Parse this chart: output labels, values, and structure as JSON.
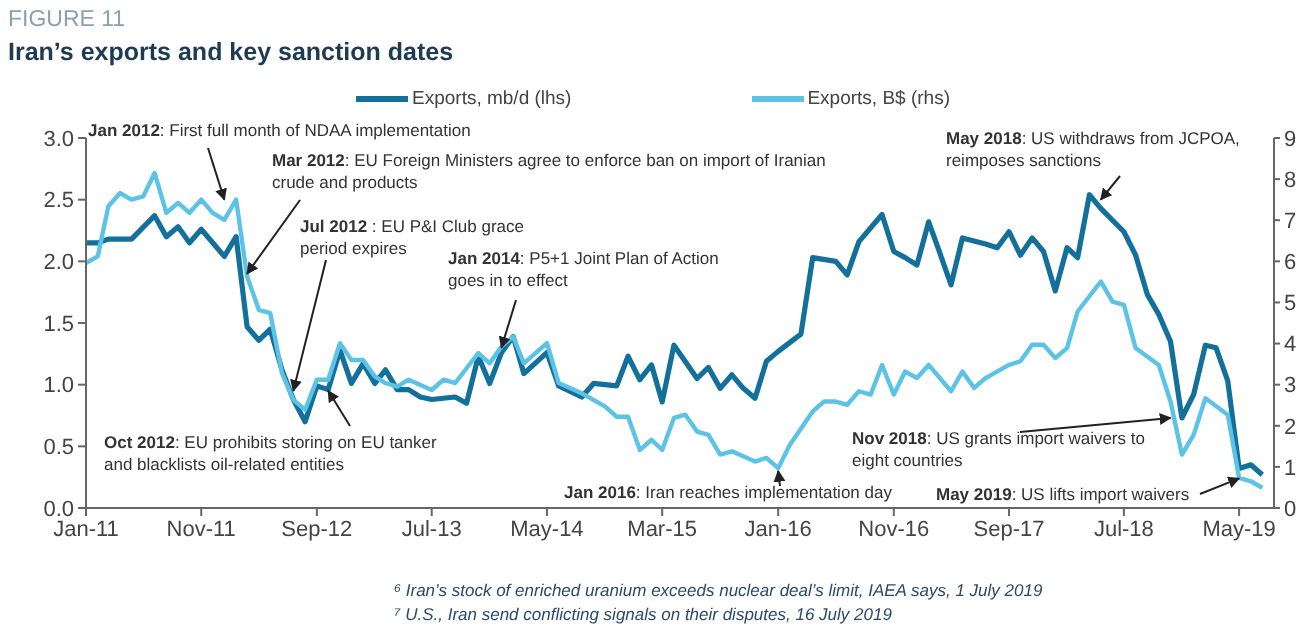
{
  "chart_data": {
    "type": "line",
    "title": "FIGURE 11",
    "subtitle": "Iran’s exports and key sanction dates",
    "xlim": [
      "2011-01",
      "2019-08"
    ],
    "xticks": [
      {
        "value": "2011-01",
        "label": "Jan-11"
      },
      {
        "value": "2011-11",
        "label": "Nov-11"
      },
      {
        "value": "2012-09",
        "label": "Sep-12"
      },
      {
        "value": "2013-07",
        "label": "Jul-13"
      },
      {
        "value": "2014-05",
        "label": "May-14"
      },
      {
        "value": "2015-03",
        "label": "Mar-15"
      },
      {
        "value": "2016-01",
        "label": "Jan-16"
      },
      {
        "value": "2016-11",
        "label": "Nov-16"
      },
      {
        "value": "2017-09",
        "label": "Sep-17"
      },
      {
        "value": "2018-07",
        "label": "Jul-18"
      },
      {
        "value": "2019-05",
        "label": "May-19"
      }
    ],
    "ylim": [
      0,
      3
    ],
    "yticks": [
      {
        "value": 0,
        "label": "0.0"
      },
      {
        "value": 0.5,
        "label": "0.5"
      },
      {
        "value": 1,
        "label": "1.0"
      },
      {
        "value": 1.5,
        "label": "1.5"
      },
      {
        "value": 2,
        "label": "2.0"
      },
      {
        "value": 2.5,
        "label": "2.5"
      },
      {
        "value": 3,
        "label": "3.0"
      }
    ],
    "y2lim": [
      0,
      9
    ],
    "y2ticks": [
      0,
      1,
      2,
      3,
      4,
      5,
      6,
      7,
      8,
      9
    ],
    "legend": "top",
    "marker": "none",
    "line_style": "solid",
    "series": [
      {
        "name": "Exports, mb/d (lhs)",
        "color": "#13709a",
        "x": [
          "2011-01",
          "2011-02",
          "2011-03",
          "2011-05",
          "2011-07",
          "2011-08",
          "2011-09",
          "2011-10",
          "2011-11",
          "2012-01",
          "2012-02",
          "2012-03",
          "2012-04",
          "2012-05",
          "2012-06",
          "2012-07",
          "2012-08",
          "2012-09",
          "2012-10",
          "2012-11",
          "2012-12",
          "2013-01",
          "2013-02",
          "2013-03",
          "2013-04",
          "2013-05",
          "2013-06",
          "2013-07",
          "2013-09",
          "2013-10",
          "2013-11",
          "2013-12",
          "2014-01",
          "2014-02",
          "2014-03",
          "2014-05",
          "2014-06",
          "2014-08",
          "2014-09",
          "2014-11",
          "2014-12",
          "2015-01",
          "2015-02",
          "2015-03",
          "2015-04",
          "2015-06",
          "2015-07",
          "2015-08",
          "2015-09",
          "2015-10",
          "2015-11",
          "2015-12",
          "2016-01",
          "2016-03",
          "2016-04",
          "2016-06",
          "2016-07",
          "2016-08",
          "2016-10",
          "2016-11",
          "2016-12",
          "2017-01",
          "2017-02",
          "2017-03",
          "2017-04",
          "2017-05",
          "2017-07",
          "2017-08",
          "2017-09",
          "2017-10",
          "2017-11",
          "2017-12",
          "2018-01",
          "2018-02",
          "2018-03",
          "2018-04",
          "2018-05",
          "2018-07",
          "2018-08",
          "2018-09",
          "2018-10",
          "2018-11",
          "2018-12",
          "2019-01",
          "2019-02",
          "2019-03",
          "2019-04",
          "2019-05",
          "2019-06",
          "2019-07"
        ],
        "values": [
          2.15,
          2.15,
          2.18,
          2.18,
          2.37,
          2.2,
          2.28,
          2.15,
          2.26,
          2.04,
          2.2,
          1.47,
          1.36,
          1.45,
          1.12,
          0.88,
          0.7,
          0.99,
          0.96,
          1.28,
          1.01,
          1.17,
          1.01,
          1.12,
          0.96,
          0.96,
          0.9,
          0.88,
          0.9,
          0.85,
          1.23,
          1.01,
          1.26,
          1.39,
          1.09,
          1.26,
          0.99,
          0.9,
          1.01,
          0.99,
          1.23,
          1.04,
          1.16,
          0.86,
          1.32,
          1.05,
          1.14,
          0.97,
          1.08,
          0.97,
          0.89,
          1.19,
          1.27,
          1.41,
          2.03,
          2.0,
          1.89,
          2.16,
          2.38,
          2.08,
          2.03,
          1.97,
          2.32,
          2.08,
          1.81,
          2.19,
          2.14,
          2.11,
          2.24,
          2.05,
          2.19,
          2.08,
          1.76,
          2.11,
          2.03,
          2.54,
          2.43,
          2.24,
          2.05,
          1.73,
          1.57,
          1.35,
          0.73,
          0.92,
          1.32,
          1.3,
          1.03,
          0.32,
          0.35,
          0.27
        ]
      },
      {
        "name": "Exports, B$ (rhs)",
        "color": "#5cc3e6",
        "axis": "y2",
        "x": [
          "2011-01",
          "2011-02",
          "2011-03",
          "2011-04",
          "2011-05",
          "2011-06",
          "2011-07",
          "2011-08",
          "2011-09",
          "2011-10",
          "2011-11",
          "2011-12",
          "2012-01",
          "2012-02",
          "2012-03",
          "2012-04",
          "2012-05",
          "2012-06",
          "2012-07",
          "2012-08",
          "2012-09",
          "2012-10",
          "2012-11",
          "2012-12",
          "2013-01",
          "2013-02",
          "2013-03",
          "2013-04",
          "2013-05",
          "2013-07",
          "2013-08",
          "2013-09",
          "2013-11",
          "2013-12",
          "2014-01",
          "2014-02",
          "2014-03",
          "2014-05",
          "2014-06",
          "2014-08",
          "2014-10",
          "2014-11",
          "2014-12",
          "2015-01",
          "2015-02",
          "2015-03",
          "2015-04",
          "2015-05",
          "2015-06",
          "2015-07",
          "2015-08",
          "2015-09",
          "2015-11",
          "2015-12",
          "2016-01",
          "2016-02",
          "2016-04",
          "2016-05",
          "2016-06",
          "2016-07",
          "2016-08",
          "2016-09",
          "2016-10",
          "2016-11",
          "2016-12",
          "2017-01",
          "2017-02",
          "2017-04",
          "2017-05",
          "2017-06",
          "2017-07",
          "2017-09",
          "2017-10",
          "2017-11",
          "2017-12",
          "2018-01",
          "2018-02",
          "2018-03",
          "2018-05",
          "2018-06",
          "2018-07",
          "2018-08",
          "2018-10",
          "2018-11",
          "2018-12",
          "2019-01",
          "2019-02",
          "2019-04",
          "2019-05",
          "2019-06",
          "2019-07"
        ],
        "values": [
          5.96,
          6.12,
          7.34,
          7.66,
          7.5,
          7.58,
          8.15,
          7.18,
          7.42,
          7.18,
          7.5,
          7.18,
          7.01,
          7.5,
          5.63,
          4.82,
          4.74,
          3.28,
          2.63,
          2.39,
          3.12,
          3.12,
          4.01,
          3.6,
          3.6,
          3.2,
          3.04,
          2.95,
          3.12,
          2.87,
          3.12,
          3.04,
          3.77,
          3.52,
          3.93,
          4.17,
          3.52,
          4.01,
          3.04,
          2.79,
          2.47,
          2.22,
          2.22,
          1.41,
          1.66,
          1.41,
          2.19,
          2.27,
          1.86,
          1.78,
          1.3,
          1.38,
          1.13,
          1.22,
          0.97,
          1.54,
          2.35,
          2.59,
          2.59,
          2.51,
          2.84,
          2.76,
          3.48,
          2.76,
          3.32,
          3.16,
          3.48,
          2.84,
          3.32,
          2.92,
          3.16,
          3.48,
          3.57,
          3.97,
          3.97,
          3.65,
          3.89,
          4.78,
          5.51,
          5.02,
          4.94,
          3.89,
          3.48,
          2.59,
          1.3,
          1.78,
          2.67,
          2.27,
          0.73,
          0.65,
          0.49
        ]
      }
    ],
    "annotations": [
      {
        "text": "Jan 2012: First full month of NDAA implementation",
        "x": "2012-01",
        "y": 2.5
      },
      {
        "text": "Mar 2012: EU Foreign Ministers agree to enforce ban on import of Iranian crude and products",
        "x": "2012-03",
        "y": 1.9
      },
      {
        "text": "Jul 2012 : EU P&I Club grace period expires",
        "x": "2012-07",
        "y": 0.95
      },
      {
        "text": "Jan 2014: P5+1 Joint Plan of Action goes in to effect",
        "x": "2014-01",
        "y": 1.3
      },
      {
        "text": "Oct 2012: EU prohibits storing on EU tanker and blacklists oil-related entities",
        "x": "2012-10",
        "y": 0.95
      },
      {
        "text": "Jan 2016: Iran reaches implementation day",
        "x": "2016-01",
        "y": 0.3
      },
      {
        "text": "May 2018: US withdraws from JCPOA, reimposes sanctions",
        "x": "2018-05",
        "y": 2.5
      },
      {
        "text": "Nov 2018: US grants import waivers to eight countries",
        "x": "2018-11",
        "y": 0.73
      },
      {
        "text": "May 2019: US lifts import waivers",
        "x": "2019-05",
        "y": 0.24
      },
      "⁶ Iran’s stock of enriched uranium exceeds nuclear deal’s limit, IAEA says, 1 July 2019",
      "⁷ U.S., Iran send conflicting signals on their disputes, 16 July 2019"
    ]
  }
}
